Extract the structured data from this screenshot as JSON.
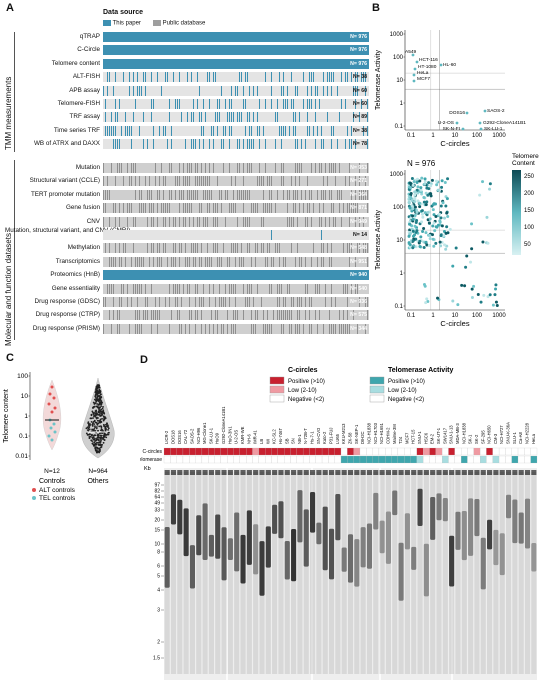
{
  "panels": {
    "a": "A",
    "b": "B",
    "c": "C",
    "d": "D"
  },
  "colors": {
    "this_paper": "#3d90b2",
    "public_db": "#9e9e9e",
    "row_bg": "#e4e4e4",
    "alt_red": "#e05050",
    "tel_teal": "#6cc3c8"
  },
  "panel_a": {
    "legend_title": "Data source",
    "legend_this_paper": "This paper",
    "legend_public": "Public database",
    "group_tmm": "TMM measurements",
    "group_mol": "Molecular and function datasets",
    "tmm_rows": [
      {
        "label": "qTRAP",
        "n": "N= 976",
        "full": true
      },
      {
        "label": "C-Circle",
        "n": "N= 976",
        "full": true
      },
      {
        "label": "Telomere content",
        "n": "N= 976",
        "full": true
      },
      {
        "label": "ALT-FISH",
        "n": "N= 38",
        "full": false
      },
      {
        "label": "APB assay",
        "n": "N= 60",
        "full": false
      },
      {
        "label": "Telomere-FISH",
        "n": "N= 60",
        "full": false
      },
      {
        "label": "TRF assay",
        "n": "N= 89",
        "full": false
      },
      {
        "label": "Time series TRF",
        "n": "N= 38",
        "full": false
      },
      {
        "label": "WB of ATRX and DAXX",
        "n": "N= 78",
        "full": false
      }
    ],
    "mol_rows": [
      {
        "label": "Mutation",
        "n": "N= 953",
        "kind": "grey"
      },
      {
        "label": "Structural variant (CCLE)",
        "n": "N= 271",
        "kind": "grey"
      },
      {
        "label": "TERT promoter mutation",
        "n": "N= 364",
        "kind": "grey"
      },
      {
        "label": "Gene fusion",
        "n": "N= 871",
        "kind": "grey"
      },
      {
        "label": "CNV",
        "n": "N= 949",
        "kind": "grey"
      },
      {
        "label": "Mutation, structural variant, and CNV (CMRI)",
        "n": "N= 14",
        "kind": "blue-small"
      },
      {
        "label": "Methylation",
        "n": "N= 548",
        "kind": "grey"
      },
      {
        "label": "Transcriptomics",
        "n": "N= 951",
        "kind": "grey"
      },
      {
        "label": "Proteomics (HnB)",
        "n": "N= 940",
        "kind": "blue"
      },
      {
        "label": "Gene essentiality",
        "n": "N= 540",
        "kind": "grey"
      },
      {
        "label": "Drug response (GDSC)",
        "n": "N= 936",
        "kind": "grey"
      },
      {
        "label": "Drug response (CTRP)",
        "n": "N= 575",
        "kind": "grey"
      },
      {
        "label": "Drug response (PRISM)",
        "n": "N= 344",
        "kind": "grey"
      }
    ]
  },
  "panel_b": {
    "ylabel": "Telomerase Activity",
    "xlabel": "C-circles",
    "top_labels": [
      "A549",
      "HCT-116",
      "HT-1080",
      "HeLa",
      "MCF7",
      "HL-60",
      "DOS16",
      "SAOS-2",
      "U-2-OS",
      "G292-CloneA141B1",
      "SK-N-FI",
      "SK-LU-1"
    ],
    "n_label": "N = 976",
    "colorbar_title1": "Telomere",
    "colorbar_title2": "Content",
    "colorbar_ticks": [
      "250",
      "200",
      "150",
      "100",
      "50"
    ],
    "y_ticks": [
      "1000",
      "100",
      "10",
      "1",
      "0.1"
    ],
    "x_ticks": [
      "0.1",
      "1",
      "10",
      "100",
      "1000"
    ]
  },
  "panel_c": {
    "ylabel": "Telomere content",
    "y_ticks": [
      "100",
      "10",
      "1",
      "0.1",
      "0.01"
    ],
    "n_controls": "N=12",
    "n_others": "N=964",
    "x_labels": [
      "Controls",
      "Others"
    ],
    "legend_alt": "ALT controls",
    "legend_tel": "TEL controls"
  },
  "panel_d": {
    "c_circles_title": "C-circles",
    "c_pos": "Positive (>10)",
    "c_low": "Low (2-10)",
    "c_neg": "Negative (<2)",
    "tel_title": "Telomerase Activity",
    "t_pos": "Positive (>10)",
    "t_low": "Low (2-10)",
    "t_neg": "Negative (<2)",
    "row_c": "C-circles",
    "row_t": "Telomerase",
    "kb_label": "Kb",
    "kb_ticks": [
      "97",
      "82",
      "64",
      "49",
      "33",
      "20",
      "15",
      "10",
      "8",
      "6",
      "5",
      "4",
      "3",
      "2",
      "1.5"
    ],
    "lanes": [
      "LICR-2",
      "DOS18",
      "DOS16",
      "CAL-72",
      "SAOS-2",
      "NCI-H96",
      "MG-Clone1",
      "SK-LU-1",
      "HuO9",
      "G292-CloneA141B1",
      "HuO-3N1",
      "U-2-OS",
      "KMR-WE",
      "NH-6",
      "IMR-41",
      "LB",
      "WI",
      "KC-SL2",
      "Hs-746T",
      "SB",
      "SN",
      "NB-1",
      "N-72B-T",
      "Hs-7-1",
      "SN-CVO",
      "Kato-2",
      "P31-FUJ",
      "LU65",
      "KKU-M213",
      "ZK-58",
      "SK-NEP-1",
      "DIH2C",
      "NCI-H1838",
      "NCI-H1703",
      "NCI-H1651",
      "COHM-2",
      "Maime-3M",
      "T24",
      "MCF7",
      "HCT-15",
      "SNU-1",
      "HSC6",
      "EM-2",
      "SK-UT-1",
      "SW1417",
      "SNU-1-13",
      "MDA-MB-3",
      "NCI-H1838",
      "SK-1",
      "SK-2",
      "SF-295",
      "NCI-H650",
      "CM-3",
      "NCI-H727",
      "SNU-K-36A",
      "SLU-1",
      "Ca-A8",
      "NCI-H2228",
      "HeLa"
    ],
    "c_status": [
      "P",
      "P",
      "P",
      "P",
      "P",
      "P",
      "P",
      "P",
      "P",
      "P",
      "P",
      "P",
      "P",
      "P",
      "L",
      "P",
      "P",
      "P",
      "P",
      "P",
      "P",
      "P",
      "P",
      "P",
      "P",
      "P",
      "P",
      "P",
      "N",
      "P",
      "L",
      "N",
      "N",
      "N",
      "N",
      "N",
      "N",
      "N",
      "N",
      "N",
      "P",
      "L",
      "P",
      "L",
      "N",
      "P",
      "N",
      "N",
      "N",
      "L",
      "N",
      "P",
      "N",
      "N",
      "N",
      "N",
      "N",
      "N",
      "N"
    ],
    "t_status": [
      "N",
      "N",
      "N",
      "N",
      "N",
      "N",
      "N",
      "N",
      "N",
      "N",
      "N",
      "N",
      "N",
      "N",
      "N",
      "N",
      "N",
      "N",
      "N",
      "N",
      "N",
      "N",
      "N",
      "N",
      "N",
      "N",
      "N",
      "N",
      "P",
      "P",
      "P",
      "P",
      "P",
      "P",
      "P",
      "P",
      "P",
      "P",
      "P",
      "P",
      "L",
      "N",
      "N",
      "N",
      "L",
      "N",
      "N",
      "P",
      "N",
      "N",
      "L",
      "N",
      "L",
      "N",
      "N",
      "P",
      "N",
      "N",
      "P"
    ]
  }
}
